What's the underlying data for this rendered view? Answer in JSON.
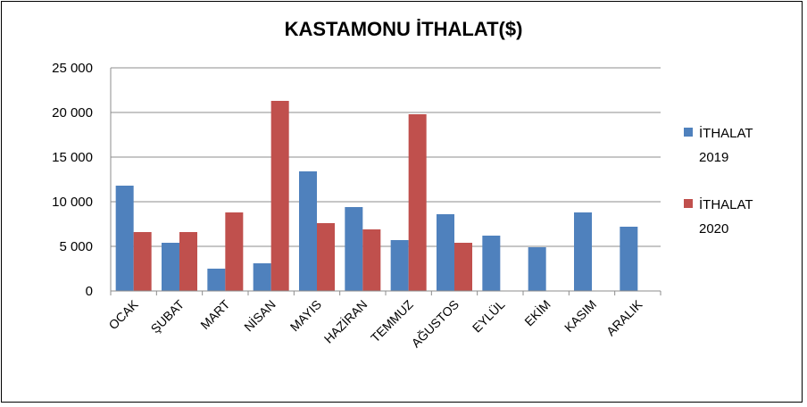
{
  "chart_data": {
    "type": "bar",
    "title": "KASTAMONU İTHALAT($)",
    "categories": [
      "OCAK",
      "ŞUBAT",
      "MART",
      "NİSAN",
      "MAYIS",
      "HAZİRAN",
      "TEMMUZ",
      "AĞUSTOS",
      "EYLÜL",
      "EKİM",
      "KASIM",
      "ARALIK"
    ],
    "series": [
      {
        "name": "İTHALAT 2019",
        "name_lines": [
          "İTHALAT",
          "2019"
        ],
        "color": "#4F81BD",
        "values": [
          11800,
          5400,
          2500,
          3100,
          13400,
          9400,
          5700,
          8600,
          6200,
          4900,
          8800,
          7200
        ]
      },
      {
        "name": "İTHALAT 2020",
        "name_lines": [
          "İTHALAT",
          "2020"
        ],
        "color": "#C0504D",
        "values": [
          6600,
          6600,
          8800,
          21300,
          7600,
          6900,
          19800,
          5400,
          null,
          null,
          null,
          null
        ]
      }
    ],
    "ylim": [
      0,
      25000
    ],
    "yticks": [
      0,
      5000,
      10000,
      15000,
      20000,
      25000
    ],
    "ytick_labels": [
      "0",
      "5 000",
      "10 000",
      "15 000",
      "20 000",
      "25 000"
    ],
    "grid": true,
    "legend_position": "right",
    "xlabel": "",
    "ylabel": ""
  }
}
